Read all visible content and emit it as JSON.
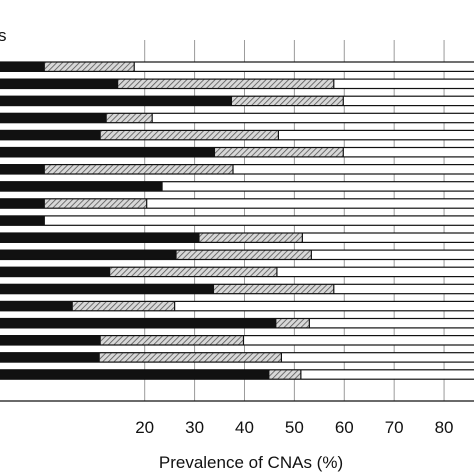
{
  "chart_data": {
    "type": "bar",
    "orientation": "horizontal",
    "stacked": true,
    "title": "",
    "xlabel": "Prevalence of CNAs (%)",
    "ylabel": "",
    "legend_fragment": "s",
    "xlim": [
      -9,
      86
    ],
    "xticks": [
      20,
      30,
      40,
      50,
      60,
      70,
      80
    ],
    "grid": "vertical",
    "colors": {
      "black": "#111111",
      "hatched": "#b8b8b8",
      "white": "#ffffff",
      "edge": "#111111"
    },
    "bars": [
      {
        "black": 0,
        "hatched": 17.9,
        "white": 100
      },
      {
        "black": 14.7,
        "hatched": 57.9,
        "white": 100
      },
      {
        "black": 37.5,
        "hatched": 59.8,
        "white": 100
      },
      {
        "black": 12.4,
        "hatched": 21.5,
        "white": 100
      },
      {
        "black": 11.2,
        "hatched": 46.8,
        "white": 100
      },
      {
        "black": 34.1,
        "hatched": 59.8,
        "white": 100
      },
      {
        "black": 0,
        "hatched": 37.7,
        "white": 100
      },
      {
        "black": 23.6,
        "hatched": 23.6,
        "white": 100
      },
      {
        "black": 0,
        "hatched": 20.4,
        "white": 100
      },
      {
        "black": 0,
        "hatched": 0,
        "white": 100
      },
      {
        "black": 31.0,
        "hatched": 51.6,
        "white": 100
      },
      {
        "black": 26.4,
        "hatched": 53.4,
        "white": 100
      },
      {
        "black": 13.1,
        "hatched": 46.5,
        "white": 100
      },
      {
        "black": 33.9,
        "hatched": 57.9,
        "white": 100
      },
      {
        "black": 5.6,
        "hatched": 26.0,
        "white": 100
      },
      {
        "black": 46.4,
        "hatched": 53.0,
        "white": 100
      },
      {
        "black": 11.2,
        "hatched": 39.8,
        "white": 100
      },
      {
        "black": 11.0,
        "hatched": 47.4,
        "white": 100
      },
      {
        "black": 45.0,
        "hatched": 51.3,
        "white": 100
      }
    ]
  }
}
